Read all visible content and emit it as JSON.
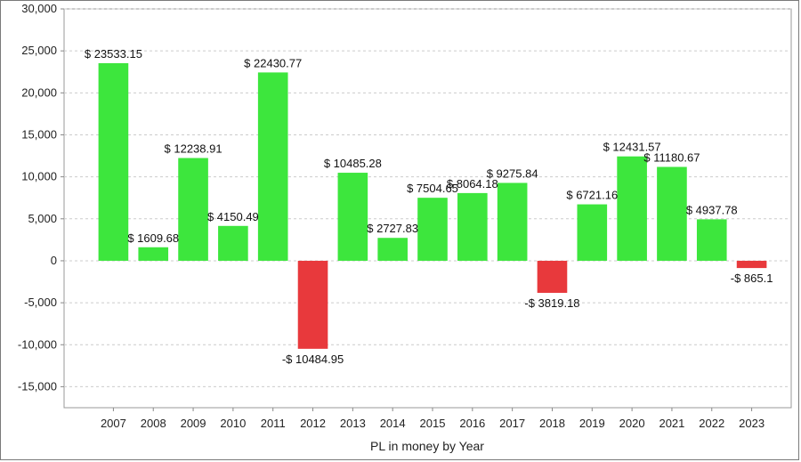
{
  "chart_data": {
    "type": "bar",
    "title": "",
    "xlabel": "PL in money by Year",
    "ylabel": "",
    "ylim": [
      -17500,
      30000
    ],
    "yticks": [
      -15000,
      -10000,
      -5000,
      0,
      5000,
      10000,
      15000,
      20000,
      25000,
      30000
    ],
    "ytick_labels": [
      "-15,000",
      "-10,000",
      "-5,000",
      "0",
      "5,000",
      "10,000",
      "15,000",
      "20,000",
      "25,000",
      "30,000"
    ],
    "grid": true,
    "legend": "none",
    "colors": {
      "positive": "#3de63d",
      "negative": "#e8393c",
      "grid": "#cccccc",
      "axis": "#888888"
    },
    "categories": [
      "2007",
      "2008",
      "2009",
      "2010",
      "2011",
      "2012",
      "2013",
      "2014",
      "2015",
      "2016",
      "2017",
      "2018",
      "2019",
      "2020",
      "2021",
      "2022",
      "2023"
    ],
    "values": [
      23533.15,
      1609.68,
      12238.91,
      4150.49,
      22430.77,
      -10484.95,
      10485.28,
      2727.83,
      7504.65,
      8064.18,
      9275.84,
      -3819.18,
      6721.16,
      12431.57,
      11180.67,
      4937.78,
      -865.1
    ],
    "data_labels": [
      "$ 23533.15",
      "$ 1609.68",
      "$ 12238.91",
      "$ 4150.49",
      "$ 22430.77",
      "-$ 10484.95",
      "$ 10485.28",
      "$ 2727.83",
      "$ 7504.65",
      "$ 8064.18",
      "$ 9275.84",
      "-$ 3819.18",
      "$ 6721.16",
      "$ 12431.57",
      "$ 11180.67",
      "$ 4937.78",
      "-$ 865.1"
    ]
  }
}
